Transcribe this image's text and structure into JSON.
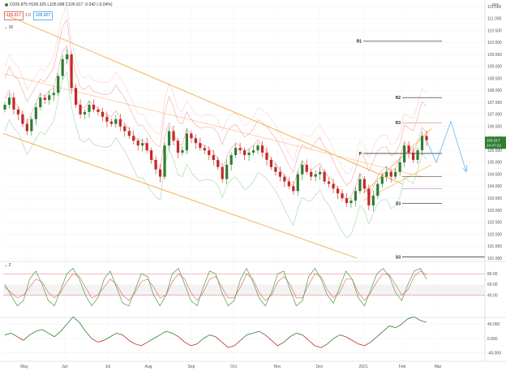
{
  "header": {
    "ohlc_text": "O105.875 H105.925 L105.698 C105.917 -0.042 (-0.04%)",
    "sell_price": "105.917",
    "spread": "1.0",
    "buy_price": "105.927",
    "layers_label": "16",
    "currency_label": "JPY",
    "panel2_label": "2"
  },
  "colors": {
    "up": "#2e7d32",
    "down": "#c62828",
    "channel": "#f7a94b",
    "pivot": "#222222",
    "bands": "#f4a6a6",
    "stoch_d": "#e57373",
    "last_price_tag": "#2e7d32"
  },
  "last_price_tag": {
    "price": "105.917",
    "countdown": "14:47:22"
  },
  "chart_data": {
    "type": "candlestick",
    "x_labels": [
      "May",
      "Jun",
      "Jul",
      "Aug",
      "Sep",
      "Oct",
      "Nov",
      "Dec",
      "2021",
      "Feb",
      "Mar"
    ],
    "y_ticks": [
      "111.500",
      "111.000",
      "110.500",
      "110.000",
      "109.500",
      "109.000",
      "108.500",
      "108.000",
      "107.500",
      "107.000",
      "106.500",
      "106.000",
      "105.500",
      "105.000",
      "104.500",
      "104.000",
      "103.500",
      "103.000",
      "102.500",
      "102.000",
      "101.500",
      "101.000"
    ],
    "ylim": [
      101.0,
      111.5
    ],
    "pivots": [
      {
        "name": "R1",
        "value": 110.05
      },
      {
        "name": "R2",
        "value": 107.7
      },
      {
        "name": "R3",
        "value": 106.65
      },
      {
        "name": "P",
        "value": 105.37
      },
      {
        "name": "S3",
        "value": 103.28
      },
      {
        "name": "S3",
        "value": 101.05
      }
    ],
    "close_path": [
      107.4,
      107.7,
      107.2,
      107.0,
      106.6,
      106.3,
      106.8,
      107.3,
      107.7,
      107.6,
      107.8,
      107.9,
      108.6,
      109.3,
      109.5,
      108.1,
      107.4,
      107.0,
      107.1,
      107.4,
      107.2,
      107.1,
      106.9,
      106.7,
      106.6,
      106.8,
      106.5,
      106.3,
      106.1,
      105.9,
      105.7,
      105.8,
      105.5,
      105.1,
      104.7,
      104.4,
      105.7,
      106.3,
      105.9,
      105.4,
      105.5,
      106.2,
      106.0,
      105.8,
      105.6,
      105.5,
      105.3,
      105.1,
      104.8,
      104.3,
      104.9,
      105.3,
      105.6,
      105.5,
      105.3,
      105.4,
      105.5,
      105.7,
      105.4,
      105.1,
      104.8,
      104.6,
      104.4,
      104.2,
      104.0,
      103.8,
      104.5,
      104.9,
      104.6,
      104.4,
      104.5,
      104.6,
      104.2,
      104.1,
      103.9,
      103.7,
      103.5,
      103.3,
      103.4,
      103.8,
      104.3,
      103.9,
      103.2,
      103.6,
      104.1,
      104.4,
      104.6,
      104.4,
      104.6,
      105.0,
      105.7,
      105.4,
      105.1,
      105.5,
      106.1,
      105.917
    ],
    "stoch_k": [
      60,
      40,
      20,
      30,
      70,
      85,
      60,
      30,
      20,
      50,
      80,
      90,
      70,
      40,
      20,
      35,
      70,
      85,
      55,
      25,
      20,
      50,
      80,
      75,
      40,
      20,
      40,
      80,
      90,
      60,
      30,
      20,
      55,
      85,
      80,
      45,
      20,
      30,
      70,
      90,
      65,
      35,
      20,
      45,
      80,
      85,
      50,
      20,
      30,
      75,
      90,
      70,
      40,
      25,
      55,
      85,
      70,
      35,
      20,
      50,
      80,
      90,
      75,
      45,
      30,
      60,
      85,
      90,
      70
    ],
    "stoch_d": [
      55,
      45,
      35,
      40,
      55,
      70,
      65,
      45,
      35,
      45,
      65,
      80,
      75,
      55,
      35,
      40,
      55,
      70,
      60,
      40,
      30,
      45,
      65,
      70,
      55,
      35,
      40,
      65,
      80,
      70,
      45,
      30,
      45,
      70,
      75,
      55,
      35,
      35,
      55,
      80,
      70,
      45,
      30,
      40,
      65,
      75,
      60,
      35,
      35,
      60,
      80,
      75,
      50,
      35,
      45,
      70,
      70,
      45,
      30,
      45,
      65,
      80,
      78,
      60,
      40,
      50,
      75,
      85,
      78
    ],
    "stoch_ticks": [
      "80.00",
      "60.00",
      "40.00"
    ],
    "osc_values": [
      10,
      15,
      5,
      -5,
      10,
      20,
      25,
      15,
      5,
      20,
      40,
      60,
      45,
      20,
      0,
      -10,
      -5,
      5,
      15,
      10,
      -5,
      -15,
      -20,
      -10,
      0,
      10,
      20,
      15,
      5,
      -10,
      -20,
      -15,
      0,
      10,
      5,
      -10,
      -25,
      -20,
      -5,
      10,
      15,
      20,
      10,
      -5,
      -20,
      -10,
      5,
      15,
      10,
      -5,
      -20,
      -25,
      -15,
      0,
      10,
      5,
      -5,
      -15,
      -20,
      -10,
      5,
      20,
      35,
      30,
      40,
      55,
      60,
      50,
      45
    ],
    "osc_ticks": [
      "40.000",
      "0.000",
      "-40.000"
    ]
  }
}
